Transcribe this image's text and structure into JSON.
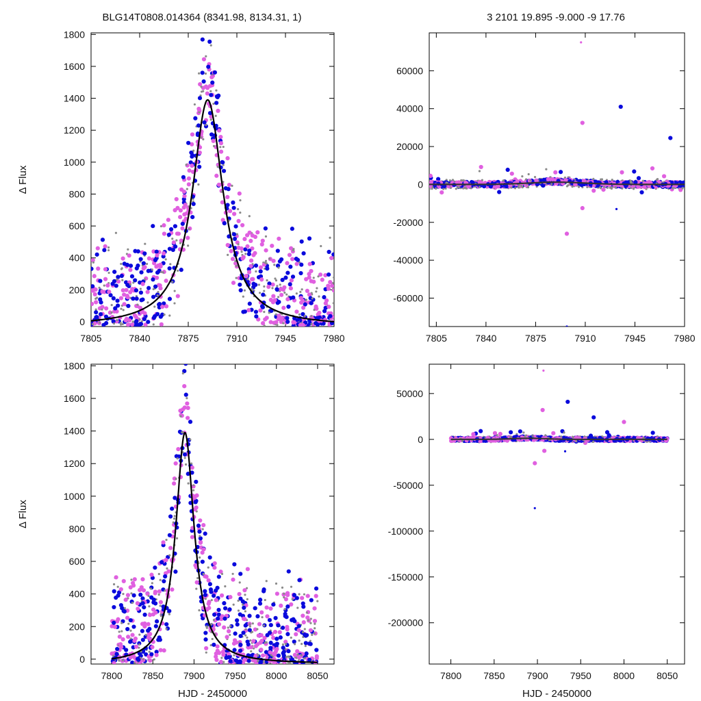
{
  "header": {
    "left_title": "BLG14T0808.014364 (8341.98, 8134.31,     1)",
    "right_title": "3   2101   19.895   -9.000   -9   17.76"
  },
  "colors": {
    "blue": "#0a0adc",
    "magenta": "#e060e0",
    "gray": "#8a8a8a",
    "curve": "#000000"
  },
  "chart_data": [
    {
      "id": "top-left",
      "type": "scatter",
      "xlim": [
        7805,
        7980
      ],
      "ylim": [
        -30,
        1810
      ],
      "xticks": [
        7805,
        7840,
        7875,
        7910,
        7945,
        7980
      ],
      "yticks": [
        0,
        200,
        400,
        600,
        800,
        1000,
        1200,
        1400,
        1600,
        1800
      ],
      "xlabel": "",
      "ylabel": "Δ Flux",
      "model": {
        "kind": "lorentz",
        "t0": 7889,
        "width": 13.5,
        "peak": 1390
      },
      "spread": 520,
      "scatter_max": 1800
    },
    {
      "id": "top-right",
      "type": "scatter",
      "xlim": [
        7800,
        7980
      ],
      "ylim": [
        -75000,
        80000
      ],
      "xticks": [
        7805,
        7840,
        7875,
        7910,
        7945,
        7980
      ],
      "yticks": [
        60000,
        40000,
        20000,
        0,
        -20000,
        -40000,
        -60000
      ],
      "xlabel": "",
      "ylabel": "",
      "model": {
        "kind": "flat",
        "t0": 7889,
        "width": 20,
        "peak": 1400
      },
      "spread": 2200,
      "outliers": [
        [
          7897,
          -26000
        ],
        [
          7897,
          -75000
        ],
        [
          7908,
          32500
        ],
        [
          7935,
          41000
        ],
        [
          7907,
          75000
        ],
        [
          7970,
          24500
        ],
        [
          7908,
          -12500
        ],
        [
          7932,
          -13000
        ]
      ]
    },
    {
      "id": "bottom-left",
      "type": "scatter",
      "xlim": [
        7775,
        8070
      ],
      "ylim": [
        -30,
        1810
      ],
      "xticks": [
        7800,
        7850,
        7900,
        7950,
        8000,
        8050
      ],
      "yticks": [
        0,
        200,
        400,
        600,
        800,
        1000,
        1200,
        1400,
        1600,
        1800
      ],
      "xlabel": "HJD - 2450000",
      "ylabel": "Δ Flux",
      "model": {
        "kind": "lorentz",
        "t0": 7889,
        "width": 13.5,
        "peak": 1390
      },
      "spread": 520,
      "scatter_max": 1800
    },
    {
      "id": "bottom-right",
      "type": "scatter",
      "xlim": [
        7775,
        8070
      ],
      "ylim": [
        -245000,
        82000
      ],
      "xticks": [
        7800,
        7850,
        7900,
        7950,
        8000,
        8050
      ],
      "yticks": [
        50000,
        0,
        -50000,
        -100000,
        -150000,
        -200000
      ],
      "xlabel": "HJD - 2450000",
      "ylabel": "",
      "model": {
        "kind": "flat",
        "t0": 7889,
        "width": 20,
        "peak": 1400
      },
      "spread": 2800,
      "outliers": [
        [
          7897,
          -26000
        ],
        [
          7897,
          -75000
        ],
        [
          7906,
          32000
        ],
        [
          7935,
          41000
        ],
        [
          7907,
          75000
        ],
        [
          7965,
          24000
        ],
        [
          7908,
          -12500
        ],
        [
          7932,
          -13000
        ],
        [
          8000,
          19000
        ]
      ]
    }
  ]
}
